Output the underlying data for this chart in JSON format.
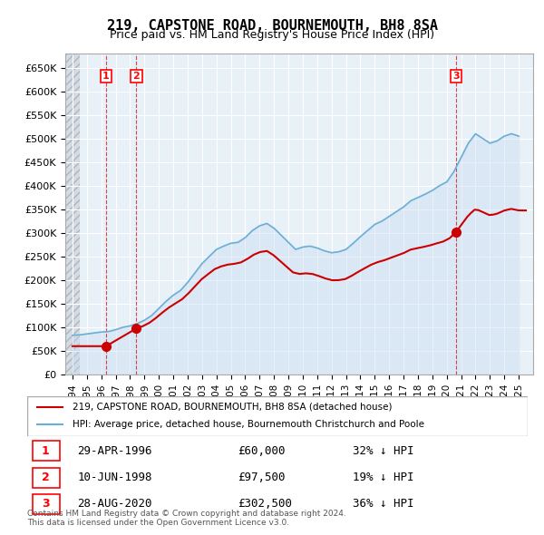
{
  "title": "219, CAPSTONE ROAD, BOURNEMOUTH, BH8 8SA",
  "subtitle": "Price paid vs. HM Land Registry's House Price Index (HPI)",
  "ylabel_ticks": [
    "£0",
    "£50K",
    "£100K",
    "£150K",
    "£200K",
    "£250K",
    "£300K",
    "£350K",
    "£400K",
    "£450K",
    "£500K",
    "£550K",
    "£600K",
    "£650K"
  ],
  "ytick_values": [
    0,
    50000,
    100000,
    150000,
    200000,
    250000,
    300000,
    350000,
    400000,
    450000,
    500000,
    550000,
    600000,
    650000
  ],
  "ylim": [
    0,
    680000
  ],
  "xlim": [
    1993.5,
    2026
  ],
  "xtick_years": [
    1994,
    1995,
    1996,
    1997,
    1998,
    1999,
    2000,
    2001,
    2002,
    2003,
    2004,
    2005,
    2006,
    2007,
    2008,
    2009,
    2010,
    2011,
    2012,
    2013,
    2014,
    2015,
    2016,
    2017,
    2018,
    2019,
    2020,
    2021,
    2022,
    2023,
    2024,
    2025
  ],
  "sale_points": [
    {
      "year": 1996.33,
      "price": 60000,
      "label": "1"
    },
    {
      "year": 1998.44,
      "price": 97500,
      "label": "2"
    },
    {
      "year": 2020.66,
      "price": 302500,
      "label": "3"
    }
  ],
  "hpi_line_color": "#6baed6",
  "sale_line_color": "#cc0000",
  "hpi_fill_color": "#c6dbef",
  "background_hatch_color": "#d0d8e8",
  "legend_entries": [
    "219, CAPSTONE ROAD, BOURNEMOUTH, BH8 8SA (detached house)",
    "HPI: Average price, detached house, Bournemouth Christchurch and Poole"
  ],
  "table_rows": [
    {
      "num": "1",
      "date": "29-APR-1996",
      "price": "£60,000",
      "note": "32% ↓ HPI"
    },
    {
      "num": "2",
      "date": "10-JUN-1998",
      "price": "£97,500",
      "note": "19% ↓ HPI"
    },
    {
      "num": "3",
      "date": "28-AUG-2020",
      "price": "£302,500",
      "note": "36% ↓ HPI"
    }
  ],
  "footer": "Contains HM Land Registry data © Crown copyright and database right 2024.\nThis data is licensed under the Open Government Licence v3.0."
}
